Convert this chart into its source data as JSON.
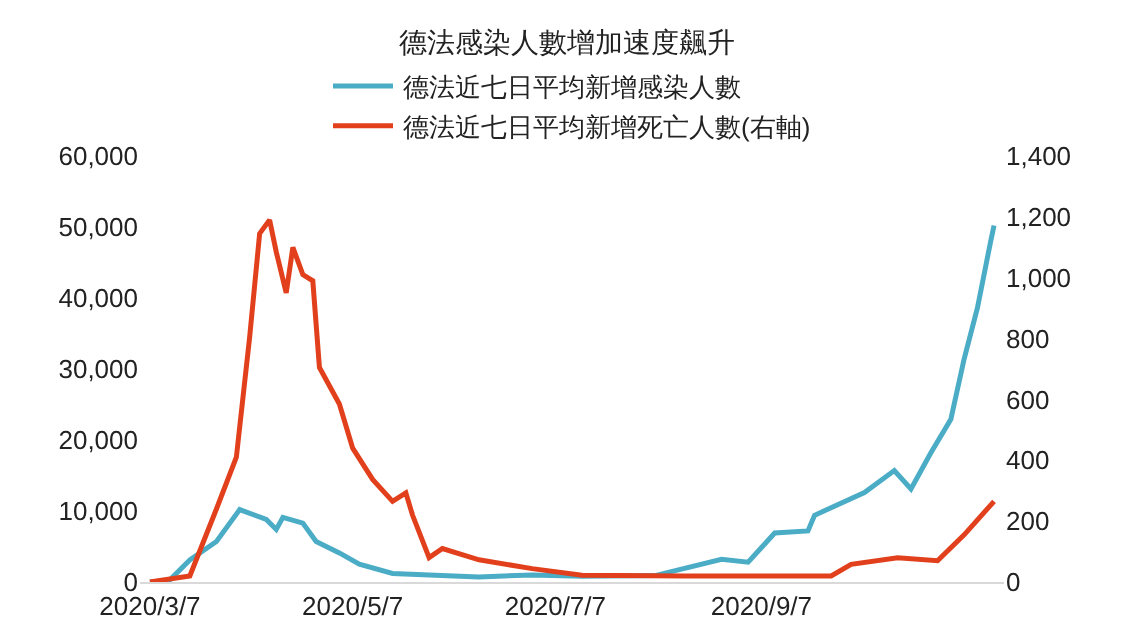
{
  "chart_data": {
    "type": "line",
    "title": "德法感染人數增加速度飆升",
    "legend": "top",
    "grid": false,
    "line_style": "solid",
    "marker": "none",
    "xlim": [
      "2020-03-04",
      "2020-11-19"
    ],
    "xticks": [
      {
        "value": "2020-03-07",
        "label": "2020/3/7"
      },
      {
        "value": "2020-05-07",
        "label": "2020/5/7"
      },
      {
        "value": "2020-07-07",
        "label": "2020/7/7"
      },
      {
        "value": "2020-09-07",
        "label": "2020/9/7"
      }
    ],
    "ylim": [
      0,
      60000
    ],
    "yticks": [
      {
        "value": 0,
        "label": "0"
      },
      {
        "value": 10000,
        "label": "10,000"
      },
      {
        "value": 20000,
        "label": "20,000"
      },
      {
        "value": 30000,
        "label": "30,000"
      },
      {
        "value": 40000,
        "label": "40,000"
      },
      {
        "value": 50000,
        "label": "50,000"
      },
      {
        "value": 60000,
        "label": "60,000"
      }
    ],
    "y2lim": [
      0,
      1400
    ],
    "y2ticks": [
      {
        "value": 0,
        "label": "0"
      },
      {
        "value": 200,
        "label": "200"
      },
      {
        "value": 400,
        "label": "400"
      },
      {
        "value": 600,
        "label": "600"
      },
      {
        "value": 800,
        "label": "800"
      },
      {
        "value": 1000,
        "label": "1,000"
      },
      {
        "value": 1200,
        "label": "1,200"
      },
      {
        "value": 1400,
        "label": "1,400"
      }
    ],
    "series": [
      {
        "name": "德法近七日平均新增感染人數",
        "color": "#4bacc6",
        "x": [
          "2020-03-07",
          "2020-03-13",
          "2020-03-19",
          "2020-03-27",
          "2020-04-03",
          "2020-04-11",
          "2020-04-14",
          "2020-04-16",
          "2020-04-22",
          "2020-04-26",
          "2020-05-03",
          "2020-05-09",
          "2020-05-19",
          "2020-05-30",
          "2020-06-14",
          "2020-06-30",
          "2020-07-15",
          "2020-08-06",
          "2020-08-26",
          "2020-09-03",
          "2020-09-11",
          "2020-09-21",
          "2020-09-23",
          "2020-10-08",
          "2020-10-17",
          "2020-10-22",
          "2020-10-28",
          "2020-11-03",
          "2020-11-07",
          "2020-11-11",
          "2020-11-15",
          "2020-11-16"
        ],
        "values": [
          0,
          300,
          3100,
          5700,
          10200,
          8800,
          7400,
          9100,
          8300,
          5700,
          4100,
          2500,
          1200,
          1000,
          700,
          1000,
          800,
          900,
          3200,
          2800,
          6900,
          7200,
          9400,
          12600,
          15700,
          13100,
          18200,
          22900,
          31400,
          38600,
          48000,
          50200
        ]
      },
      {
        "name": "德法近七日平均新增死亡人數(右軸)",
        "color": "#e2401c",
        "axis": "y2",
        "x": [
          "2020-03-07",
          "2020-03-19",
          "2020-03-27",
          "2020-04-02",
          "2020-04-06",
          "2020-04-09",
          "2020-04-12",
          "2020-04-14",
          "2020-04-17",
          "2020-04-19",
          "2020-04-22",
          "2020-04-25",
          "2020-04-27",
          "2020-05-03",
          "2020-05-07",
          "2020-05-13",
          "2020-05-19",
          "2020-05-23",
          "2020-05-25",
          "2020-05-30",
          "2020-06-03",
          "2020-06-14",
          "2020-06-30",
          "2020-07-15",
          "2020-08-15",
          "2020-09-28",
          "2020-10-04",
          "2020-10-18",
          "2020-10-30",
          "2020-11-07",
          "2020-11-16"
        ],
        "values": [
          0,
          20,
          240,
          410,
          805,
          1145,
          1190,
          1085,
          950,
          1100,
          1010,
          990,
          705,
          585,
          440,
          337,
          265,
          293,
          220,
          80,
          110,
          73,
          44,
          22,
          20,
          20,
          58,
          80,
          70,
          155,
          265
        ]
      }
    ]
  }
}
